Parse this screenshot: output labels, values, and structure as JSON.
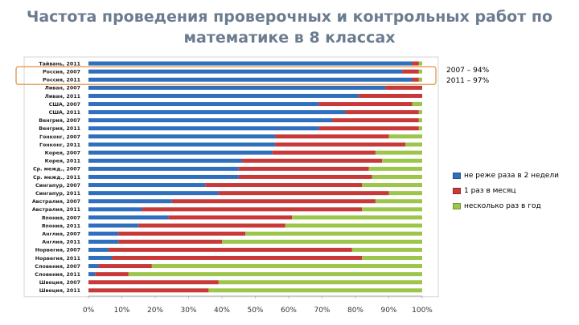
{
  "title_line1": "Частота проведения проверочных и контрольных работ по",
  "title_line2": "математике в 8 классах",
  "callout": {
    "line1": "2007 – 94%",
    "line2": "2011 – 97%"
  },
  "colors": {
    "blue": "#2f6fbd",
    "red": "#c83a3a",
    "green": "#9bc64a",
    "highlight": "#e8a060"
  },
  "chart_data": {
    "type": "bar",
    "stacked": true,
    "orientation": "horizontal",
    "title": "Частота проведения проверочных и контрольных работ по математике в 8 классах",
    "categories": [
      "Тайвань, 2011",
      "Россия, 2007",
      "Россия, 2011",
      "Ливан, 2007",
      "Ливан, 2011",
      "США, 2007",
      "США, 2011",
      "Венгрия, 2007",
      "Венгрия, 2011",
      "Гонконг, 2007",
      "Гонконг, 2011",
      "Корея, 2007",
      "Корея, 2011",
      "Ср. межд., 2007",
      "Ср. межд., 2011",
      "Сингапур, 2007",
      "Сингапур, 2011",
      "Австралия, 2007",
      "Австралия, 2011",
      "Япония, 2007",
      "Япония, 2011",
      "Англия, 2007",
      "Англия, 2011",
      "Норвегия, 2007",
      "Норвегия, 2011",
      "Словения, 2007",
      "Словения, 2011",
      "Швеция, 2007",
      "Швеция, 2011"
    ],
    "series": [
      {
        "name": "не реже раза в 2 недели",
        "color": "#2f6fbd",
        "values": [
          97,
          94,
          97,
          89,
          81,
          69,
          77,
          73,
          69,
          56,
          56,
          55,
          46,
          45,
          45,
          35,
          39,
          25,
          16,
          24,
          15,
          9,
          9,
          6,
          7,
          3,
          2,
          0,
          0
        ]
      },
      {
        "name": "1 раз в месяц",
        "color": "#c83a3a",
        "values": [
          2,
          5,
          2,
          11,
          19,
          28,
          22,
          26,
          30,
          34,
          39,
          31,
          42,
          39,
          40,
          47,
          51,
          61,
          66,
          37,
          44,
          38,
          31,
          73,
          75,
          16,
          10,
          39,
          36
        ]
      },
      {
        "name": "несколько раз в год",
        "color": "#9bc64a",
        "values": [
          1,
          1,
          1,
          0,
          0,
          3,
          1,
          1,
          1,
          10,
          5,
          14,
          12,
          16,
          15,
          18,
          10,
          14,
          18,
          39,
          41,
          53,
          60,
          21,
          18,
          81,
          88,
          61,
          64
        ]
      }
    ],
    "xlim": [
      0,
      100
    ],
    "x_ticks": [
      "0%",
      "10%",
      "20%",
      "30%",
      "40%",
      "50%",
      "60%",
      "70%",
      "80%",
      "90%",
      "100%"
    ],
    "highlighted_categories": [
      "Россия, 2007",
      "Россия, 2011"
    ],
    "legend_position": "right",
    "grid": false
  }
}
